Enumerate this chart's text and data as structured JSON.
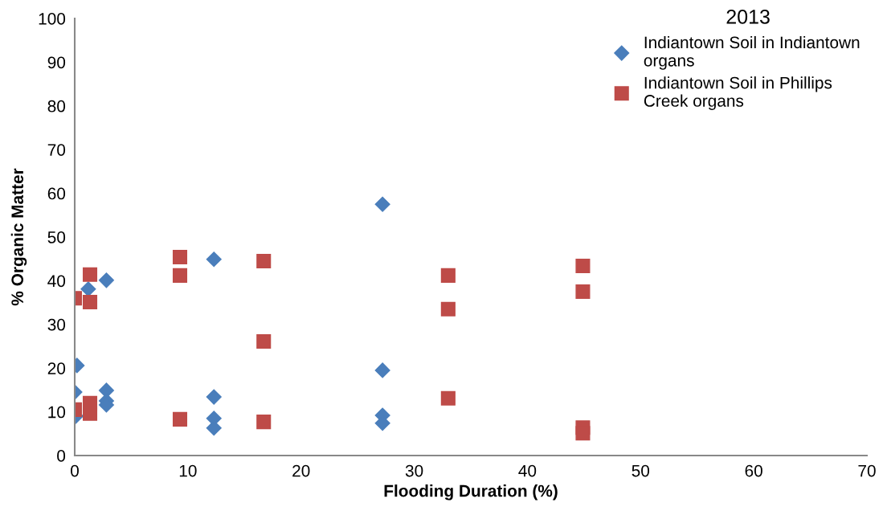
{
  "chart_data": {
    "type": "scatter",
    "title": "2013",
    "xlabel": "Flooding Duration (%)",
    "ylabel": "% Organic Matter",
    "xlim": [
      0,
      70
    ],
    "xticks": [
      0,
      10,
      20,
      30,
      40,
      50,
      60,
      70
    ],
    "ylim": [
      0,
      100
    ],
    "yticks": [
      0,
      10,
      20,
      30,
      40,
      50,
      60,
      70,
      80,
      90,
      100
    ],
    "grid": false,
    "legend": "top right",
    "series": [
      {
        "name": "Indiantown Soil in Indiantown organs",
        "color": "#4a7ebb",
        "marker": "diamond",
        "x": [
          0.1,
          0,
          0.2,
          1.2,
          2.8,
          2.8,
          2.8,
          2.8,
          12.3,
          12.3,
          12.3,
          12.3,
          27.2,
          27.2,
          27.2,
          27.2
        ],
        "values": [
          9.0,
          14.5,
          20.6,
          38.1,
          40.1,
          14.9,
          12.5,
          11.6,
          44.9,
          13.4,
          8.5,
          6.3,
          57.5,
          19.5,
          9.2,
          7.4
        ]
      },
      {
        "name": "Indiantown Soil in Phillips Creek organs",
        "color": "#be4b48",
        "marker": "square",
        "x": [
          0,
          0,
          1.35,
          1.35,
          1.35,
          1.35,
          9.3,
          9.3,
          9.3,
          16.7,
          16.7,
          16.7,
          33.0,
          33.0,
          33.0,
          44.9,
          44.9,
          44.9,
          44.9
        ],
        "values": [
          36.0,
          10.5,
          41.4,
          35.1,
          12.0,
          9.6,
          45.4,
          41.2,
          8.3,
          44.5,
          26.1,
          7.7,
          41.2,
          33.5,
          13.1,
          43.4,
          37.5,
          6.4,
          5.1
        ]
      }
    ]
  }
}
